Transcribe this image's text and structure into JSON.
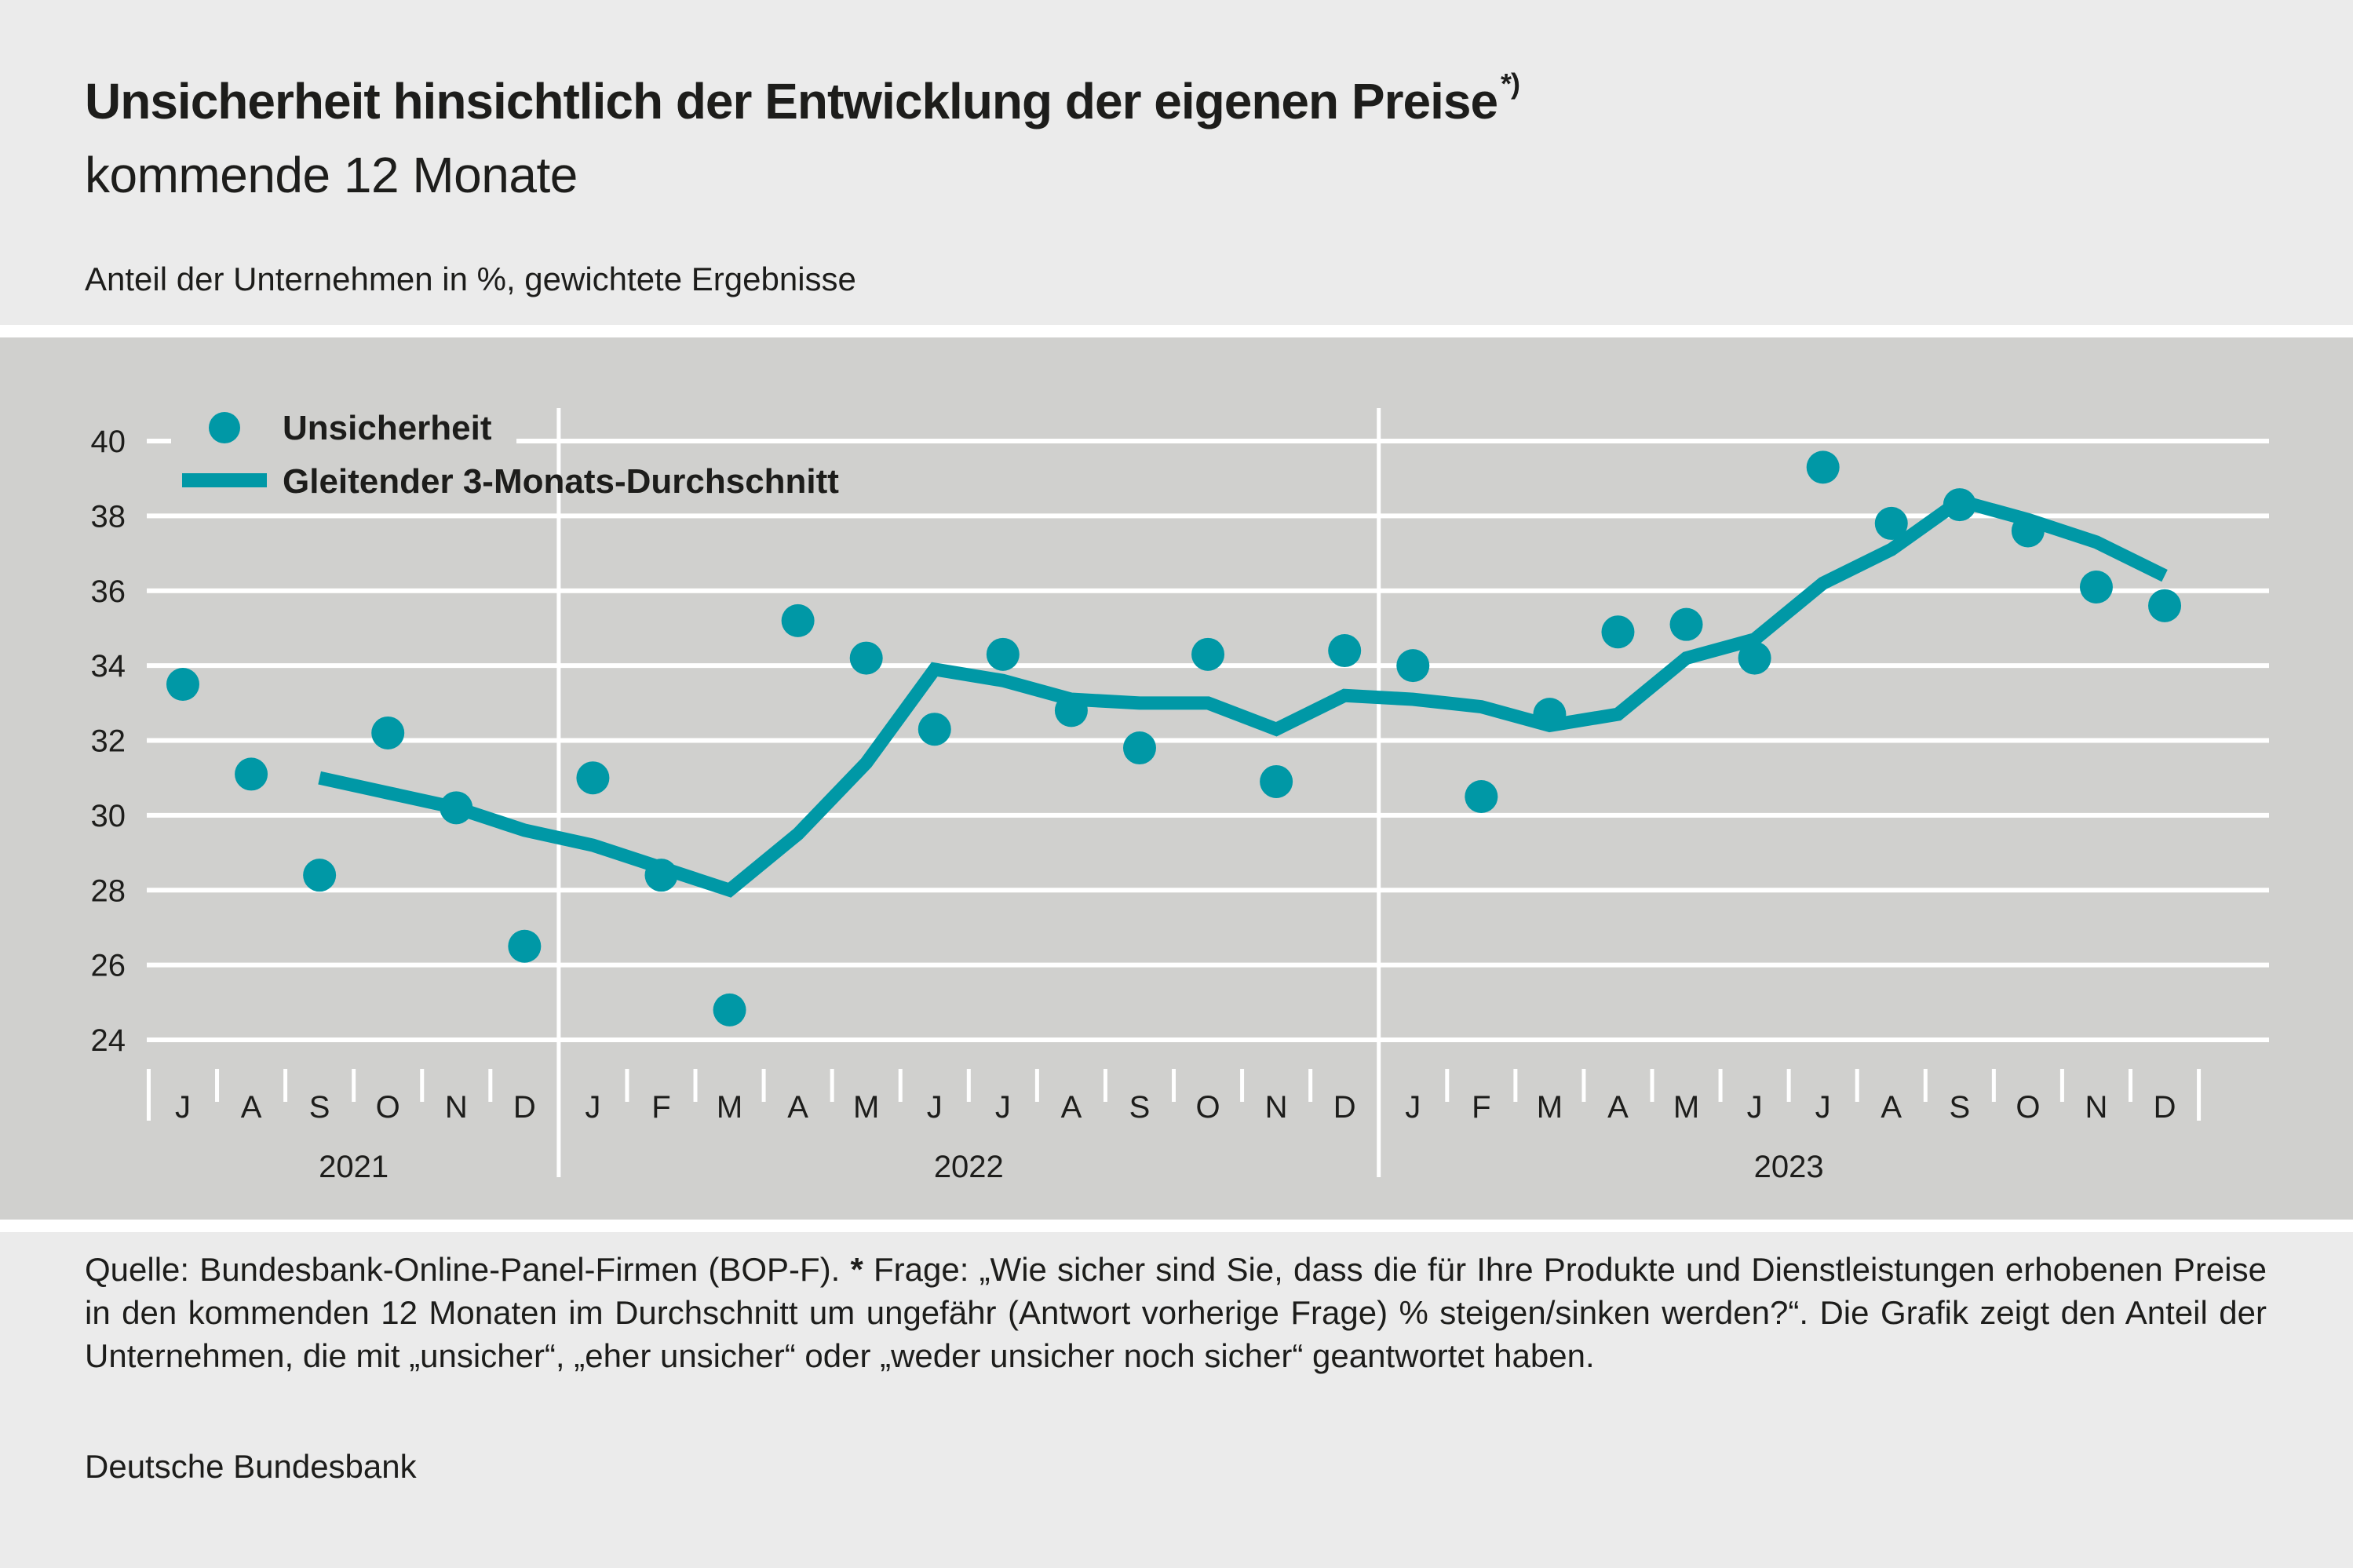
{
  "header": {
    "title": "Unsicherheit hinsichtlich der Entwicklung der eigenen Preise",
    "title_footnote_mark": "*)",
    "subtitle": "kommende 12 Monate",
    "unit_label": "Anteil der Unternehmen in %, gewichtete Ergebnisse"
  },
  "footer": {
    "source_prefix": "Quelle: Bundesbank-Online-Panel-Firmen (BOP-F).",
    "star": "*",
    "note": "Frage: „Wie sicher sind Sie, dass die für Ihre Produkte und Dienstleistungen erhobenen Preise in den kommenden 12 Monaten im Durchschnitt um ungefähr (Antwort vorherige Frage) % steigen/sinken werden?“. Die Grafik zeigt den Anteil der Unternehmen, die mit „unsicher“, „eher unsicher“ oder „weder unsicher noch sicher“ geantwortet haben.",
    "organization": "Deutsche Bundesbank"
  },
  "colors": {
    "series": "#0098a6",
    "panel_background": "#d0d0ce",
    "page_background": "#ebebeb",
    "grid": "#ffffff",
    "text": "#1d1d1b"
  },
  "chart_data": {
    "type": "line",
    "title": "Unsicherheit hinsichtlich der Entwicklung der eigenen Preise",
    "subtitle": "kommende 12 Monate",
    "ylabel": "Anteil der Unternehmen in %, gewichtete Ergebnisse",
    "xlabel": "",
    "ylim": [
      24,
      40
    ],
    "yticks": [
      24,
      26,
      28,
      30,
      32,
      34,
      36,
      38,
      40
    ],
    "grid": true,
    "legend_position": "top-left",
    "categories": [
      "J",
      "A",
      "S",
      "O",
      "N",
      "D",
      "J",
      "F",
      "M",
      "A",
      "M",
      "J",
      "J",
      "A",
      "S",
      "O",
      "N",
      "D",
      "J",
      "F",
      "M",
      "A",
      "M",
      "J",
      "J",
      "A",
      "S",
      "O",
      "N",
      "D"
    ],
    "years": [
      {
        "label": "2021",
        "start_index": 0,
        "end_index": 5
      },
      {
        "label": "2022",
        "start_index": 6,
        "end_index": 17
      },
      {
        "label": "2023",
        "start_index": 18,
        "end_index": 29
      }
    ],
    "series": [
      {
        "name": "Unsicherheit",
        "style": "dots",
        "values": [
          33.5,
          31.1,
          28.4,
          32.2,
          30.2,
          26.5,
          31.0,
          28.4,
          24.8,
          35.2,
          34.2,
          32.3,
          34.3,
          32.8,
          31.8,
          34.3,
          30.9,
          34.4,
          34.0,
          30.5,
          32.7,
          34.9,
          35.1,
          34.2,
          39.3,
          37.8,
          38.3,
          37.6,
          36.1,
          35.6
        ]
      },
      {
        "name": "Gleitender 3-Monats-Durchschnitt",
        "style": "line",
        "values": [
          null,
          null,
          31.0,
          30.6,
          30.2,
          29.6,
          29.2,
          28.6,
          28.0,
          29.5,
          31.4,
          33.9,
          33.6,
          33.1,
          33.0,
          33.0,
          32.3,
          33.2,
          33.1,
          32.9,
          32.4,
          32.7,
          34.2,
          34.7,
          36.2,
          37.1,
          38.4,
          37.9,
          37.3,
          36.4
        ]
      }
    ]
  }
}
